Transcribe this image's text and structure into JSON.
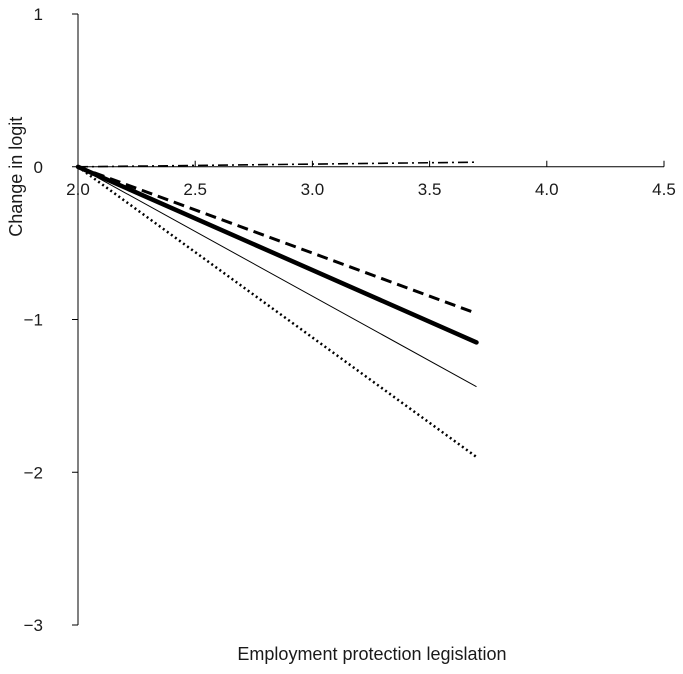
{
  "chart_data": {
    "type": "line",
    "title": "",
    "xlabel": "Employment protection legislation",
    "ylabel": "Change in logit",
    "xlim": [
      2.0,
      4.5
    ],
    "ylim": [
      -3,
      1
    ],
    "xticks": [
      "2.0",
      "2.5",
      "3.0",
      "3.5",
      "4.0",
      "4.5"
    ],
    "yticks": [
      "1",
      "0",
      "−1",
      "−2",
      "−3"
    ],
    "grid": false,
    "legend": "none",
    "series": [
      {
        "style": "thick-solid",
        "x": [
          2.0,
          3.7
        ],
        "y": [
          0,
          -1.15
        ]
      },
      {
        "style": "dashed",
        "x": [
          2.0,
          3.7
        ],
        "y": [
          0,
          -0.96
        ]
      },
      {
        "style": "thin-solid",
        "x": [
          2.0,
          3.7
        ],
        "y": [
          0,
          -1.44
        ]
      },
      {
        "style": "dotted",
        "x": [
          2.0,
          3.7
        ],
        "y": [
          0,
          -1.9
        ]
      },
      {
        "style": "dash-dot",
        "x": [
          2.0,
          3.7
        ],
        "y": [
          0,
          0.03
        ]
      }
    ]
  }
}
